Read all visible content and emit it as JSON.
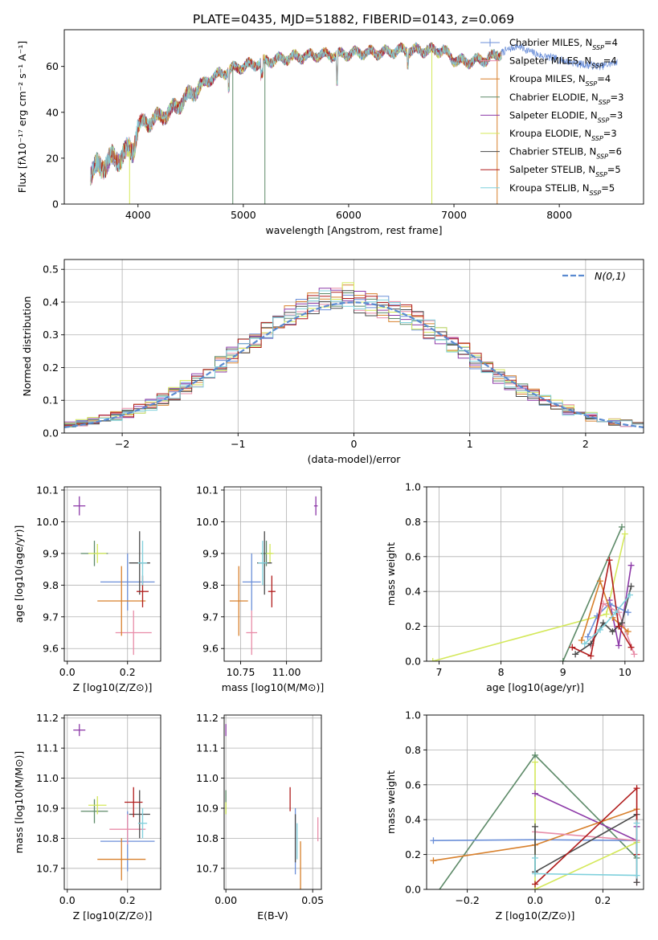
{
  "figure_title": "PLATE=0435, MJD=51882, FIBERID=0143, z=0.069",
  "colors": {
    "Chabrier MILES": "#6b8fd8",
    "Salpeter MILES": "#e88ca8",
    "Kroupa MILES": "#d8802c",
    "Chabrier ELODIE": "#5d8a68",
    "Salpeter ELODIE": "#8d3aa8",
    "Kroupa ELODIE": "#d4e85a",
    "Chabrier STELIB": "#4a4a4a",
    "Salpeter STELIB": "#b01c1c",
    "Kroupa STELIB": "#7fd0dc",
    "gaussian": "#5a8ad0",
    "grid": "#b0b0b0"
  },
  "legend_names": [
    "Chabrier MILES",
    "Salpeter MILES",
    "Kroupa MILES",
    "Chabrier ELODIE",
    "Salpeter ELODIE",
    "Kroupa ELODIE",
    "Chabrier STELIB",
    "Salpeter STELIB",
    "Kroupa STELIB"
  ],
  "legend_nssp": [
    "4",
    "4",
    "4",
    "3",
    "3",
    "3",
    "6",
    "5",
    "5"
  ],
  "legend_sub": "SSP",
  "legend_prefix": "N",
  "legend_eq": "=",
  "chart_data": [
    {
      "id": "spectrum",
      "type": "line",
      "title": "PLATE=0435, MJD=51882, FIBERID=0143, z=0.069",
      "xlabel": "wavelength [Angstrom, rest frame]",
      "ylabel": "Flux [fλ10⁻¹⁷ erg cm⁻² s⁻¹ A⁻¹]",
      "xlim": [
        3300,
        8800
      ],
      "ylim": [
        0,
        76
      ],
      "xticks": [
        4000,
        5000,
        6000,
        7000,
        8000
      ],
      "yticks": [
        0,
        20,
        40,
        60
      ],
      "grid": false,
      "legend": "top-right",
      "envelope": {
        "wavelength": [
          3550,
          3700,
          3850,
          3950,
          4000,
          4100,
          4300,
          4500,
          4700,
          4900,
          5100,
          5300,
          5500,
          5700,
          5900,
          6100,
          6300,
          6500,
          6700,
          6900,
          7000,
          7100,
          7300,
          7450
        ],
        "flux": [
          14,
          18,
          21,
          24,
          34,
          36,
          40,
          48,
          55,
          59,
          61,
          63,
          64,
          65,
          65,
          66,
          66,
          67,
          67,
          67,
          63,
          62,
          63,
          66
        ]
      },
      "extended_series": {
        "name": "Chabrier MILES",
        "wavelength": [
          7450,
          7600,
          7800,
          8000,
          8200,
          8400,
          8550
        ],
        "flux": [
          66,
          69,
          65,
          63,
          61,
          60,
          62
        ]
      },
      "drops": [
        {
          "name": "Kroupa ELODIE",
          "wavelength": 3920
        },
        {
          "name": "Chabrier ELODIE",
          "wavelength": 4900
        },
        {
          "name": "Chabrier ELODIE",
          "wavelength": 5205
        },
        {
          "name": "Kroupa ELODIE",
          "wavelength": 6790
        },
        {
          "name": "Kroupa MILES",
          "wavelength": 7410
        }
      ]
    },
    {
      "id": "residuals",
      "type": "line",
      "xlabel": "(data-model)/error",
      "ylabel": "Normed distribution",
      "xlim": [
        -2.5,
        2.5
      ],
      "ylim": [
        0,
        0.53
      ],
      "xticks": [
        -2,
        -1,
        0,
        1,
        2
      ],
      "yticks": [
        0.0,
        0.1,
        0.2,
        0.3,
        0.4,
        0.5
      ],
      "grid": true,
      "legend": "top-right",
      "gaussian_label": "N(0,1)",
      "bin_width": 0.1
    },
    {
      "id": "age_vs_Z",
      "type": "scatter",
      "xlabel": "Z [log10(Z/Z⊙)]",
      "ylabel": "age  [log10(age/yr)]",
      "xlim": [
        -0.01,
        0.31
      ],
      "ylim": [
        9.56,
        10.11
      ],
      "xticks": [
        0.0,
        0.2
      ],
      "yticks": [
        9.6,
        9.7,
        9.8,
        9.9,
        10.0,
        10.1
      ],
      "points": [
        {
          "name": "Chabrier MILES",
          "x": 0.2,
          "y": 9.81,
          "xerr": 0.09,
          "yerr": 0.09
        },
        {
          "name": "Salpeter MILES",
          "x": 0.22,
          "y": 9.65,
          "xerr": 0.06,
          "yerr": 0.07
        },
        {
          "name": "Kroupa MILES",
          "x": 0.18,
          "y": 9.75,
          "xerr": 0.08,
          "yerr": 0.11
        },
        {
          "name": "Chabrier ELODIE",
          "x": 0.09,
          "y": 9.9,
          "xerr": 0.045,
          "yerr": 0.04
        },
        {
          "name": "Salpeter ELODIE",
          "x": 0.04,
          "y": 10.05,
          "xerr": 0.02,
          "yerr": 0.03
        },
        {
          "name": "Kroupa ELODIE",
          "x": 0.1,
          "y": 9.9,
          "xerr": 0.03,
          "yerr": 0.03
        },
        {
          "name": "Chabrier STELIB",
          "x": 0.24,
          "y": 9.87,
          "xerr": 0.035,
          "yerr": 0.1
        },
        {
          "name": "Salpeter STELIB",
          "x": 0.25,
          "y": 9.78,
          "xerr": 0.02,
          "yerr": 0.05
        },
        {
          "name": "Kroupa STELIB",
          "x": 0.25,
          "y": 9.87,
          "xerr": 0.015,
          "yerr": 0.07
        }
      ]
    },
    {
      "id": "age_vs_mass",
      "type": "scatter",
      "xlabel": "mass [log10(M/M⊙)]",
      "ylabel": "",
      "xlim": [
        10.66,
        11.19
      ],
      "ylim": [
        9.56,
        10.11
      ],
      "xticks": [
        10.75,
        11.0
      ],
      "yticks": [
        9.6,
        9.7,
        9.8,
        9.9,
        10.0,
        10.1
      ],
      "points": [
        {
          "name": "Chabrier MILES",
          "x": 10.81,
          "y": 9.81,
          "xerr": 0.05,
          "yerr": 0.09
        },
        {
          "name": "Salpeter MILES",
          "x": 10.81,
          "y": 9.65,
          "xerr": 0.03,
          "yerr": 0.07
        },
        {
          "name": "Kroupa MILES",
          "x": 10.74,
          "y": 9.75,
          "xerr": 0.05,
          "yerr": 0.11
        },
        {
          "name": "Chabrier ELODIE",
          "x": 10.89,
          "y": 9.9,
          "xerr": 0.03,
          "yerr": 0.04
        },
        {
          "name": "Salpeter ELODIE",
          "x": 11.16,
          "y": 10.05,
          "xerr": 0.01,
          "yerr": 0.03
        },
        {
          "name": "Kroupa ELODIE",
          "x": 10.91,
          "y": 9.9,
          "xerr": 0.02,
          "yerr": 0.03
        },
        {
          "name": "Chabrier STELIB",
          "x": 10.88,
          "y": 9.87,
          "xerr": 0.04,
          "yerr": 0.1
        },
        {
          "name": "Salpeter STELIB",
          "x": 10.92,
          "y": 9.78,
          "xerr": 0.02,
          "yerr": 0.05
        },
        {
          "name": "Kroupa STELIB",
          "x": 10.87,
          "y": 9.87,
          "xerr": 0.025,
          "yerr": 0.07
        }
      ]
    },
    {
      "id": "weight_vs_age",
      "type": "line",
      "xlabel": "age  [log10(age/yr)]",
      "ylabel": "mass weight",
      "xlim": [
        6.8,
        10.3
      ],
      "ylim": [
        0,
        1.0
      ],
      "xticks": [
        7,
        8,
        9,
        10
      ],
      "yticks": [
        0.0,
        0.2,
        0.4,
        0.6,
        0.8,
        1.0
      ],
      "grid": true,
      "series": [
        {
          "name": "Kroupa ELODIE",
          "x": [
            6.9,
            9.7,
            10.0
          ],
          "y": [
            0.0,
            0.27,
            0.73
          ]
        },
        {
          "name": "Chabrier ELODIE",
          "x": [
            9.0,
            9.95
          ],
          "y": [
            0.0,
            0.77
          ]
        },
        {
          "name": "Salpeter ELODIE",
          "x": [
            9.75,
            9.9,
            10.1
          ],
          "y": [
            0.35,
            0.09,
            0.55
          ]
        },
        {
          "name": "Chabrier MILES",
          "x": [
            9.4,
            9.55,
            9.75,
            10.05
          ],
          "y": [
            0.14,
            0.26,
            0.33,
            0.28
          ]
        },
        {
          "name": "Salpeter MILES",
          "x": [
            9.45,
            9.65,
            9.9,
            10.15
          ],
          "y": [
            0.09,
            0.33,
            0.28,
            0.04
          ]
        },
        {
          "name": "Kroupa MILES",
          "x": [
            9.3,
            9.6,
            9.8,
            10.05
          ],
          "y": [
            0.12,
            0.46,
            0.25,
            0.17
          ]
        },
        {
          "name": "Chabrier STELIB",
          "x": [
            9.2,
            9.45,
            9.65,
            9.8,
            9.95,
            10.1
          ],
          "y": [
            0.04,
            0.1,
            0.22,
            0.17,
            0.22,
            0.43
          ]
        },
        {
          "name": "Salpeter STELIB",
          "x": [
            9.15,
            9.45,
            9.75,
            9.9,
            10.1
          ],
          "y": [
            0.08,
            0.03,
            0.58,
            0.2,
            0.08
          ]
        },
        {
          "name": "Kroupa STELIB",
          "x": [
            9.35,
            9.6,
            9.85,
            10.08
          ],
          "y": [
            0.1,
            0.18,
            0.28,
            0.38
          ]
        }
      ]
    },
    {
      "id": "mass_vs_Z",
      "type": "scatter",
      "xlabel": "Z [log10(Z/Z⊙)]",
      "ylabel": "mass [log10(M/M⊙)]",
      "xlim": [
        -0.01,
        0.31
      ],
      "ylim": [
        10.63,
        11.21
      ],
      "xticks": [
        0.0,
        0.2
      ],
      "yticks": [
        10.7,
        10.8,
        10.9,
        11.0,
        11.1,
        11.2
      ],
      "points": [
        {
          "name": "Chabrier MILES",
          "x": 0.2,
          "y": 10.79,
          "xerr": 0.09,
          "yerr": 0.1
        },
        {
          "name": "Salpeter MILES",
          "x": 0.2,
          "y": 10.83,
          "xerr": 0.06,
          "yerr": 0.05
        },
        {
          "name": "Kroupa MILES",
          "x": 0.18,
          "y": 10.73,
          "xerr": 0.08,
          "yerr": 0.07
        },
        {
          "name": "Chabrier ELODIE",
          "x": 0.09,
          "y": 10.89,
          "xerr": 0.045,
          "yerr": 0.04
        },
        {
          "name": "Salpeter ELODIE",
          "x": 0.04,
          "y": 11.16,
          "xerr": 0.02,
          "yerr": 0.02
        },
        {
          "name": "Kroupa ELODIE",
          "x": 0.1,
          "y": 10.91,
          "xerr": 0.03,
          "yerr": 0.03
        },
        {
          "name": "Chabrier STELIB",
          "x": 0.24,
          "y": 10.88,
          "xerr": 0.035,
          "yerr": 0.08
        },
        {
          "name": "Salpeter STELIB",
          "x": 0.22,
          "y": 10.92,
          "xerr": 0.03,
          "yerr": 0.05
        },
        {
          "name": "Kroupa STELIB",
          "x": 0.25,
          "y": 10.85,
          "xerr": 0.015,
          "yerr": 0.05
        }
      ]
    },
    {
      "id": "mass_vs_ebv",
      "type": "scatter",
      "xlabel": "E(B-V)",
      "ylabel": "",
      "xlim": [
        -0.001,
        0.055
      ],
      "ylim": [
        10.63,
        11.21
      ],
      "xticks": [
        0.0,
        0.05
      ],
      "yticks": [
        10.7,
        10.8,
        10.9,
        11.0,
        11.1,
        11.2
      ],
      "points": [
        {
          "name": "Chabrier MILES",
          "x": 0.04,
          "y": 10.79,
          "xerr": 0,
          "yerr": 0.11
        },
        {
          "name": "Salpeter MILES",
          "x": 0.053,
          "y": 10.83,
          "xerr": 0,
          "yerr": 0.04
        },
        {
          "name": "Kroupa MILES",
          "x": 0.043,
          "y": 10.71,
          "xerr": 0,
          "yerr": 0.08
        },
        {
          "name": "Chabrier ELODIE",
          "x": 0.0,
          "y": 10.92,
          "xerr": 0,
          "yerr": 0.04
        },
        {
          "name": "Salpeter ELODIE",
          "x": 0.0,
          "y": 11.16,
          "xerr": 0,
          "yerr": 0.02
        },
        {
          "name": "Kroupa ELODIE",
          "x": 0.0,
          "y": 10.9,
          "xerr": 0,
          "yerr": 0.02
        },
        {
          "name": "Chabrier STELIB",
          "x": 0.04,
          "y": 10.8,
          "xerr": 0,
          "yerr": 0.08
        },
        {
          "name": "Salpeter STELIB",
          "x": 0.037,
          "y": 10.93,
          "xerr": 0,
          "yerr": 0.04
        },
        {
          "name": "Kroupa STELIB",
          "x": 0.041,
          "y": 10.79,
          "xerr": 0,
          "yerr": 0.06
        }
      ]
    },
    {
      "id": "weight_vs_Z",
      "type": "line",
      "xlabel": "Z [log10(Z/Z⊙)]",
      "ylabel": "mass weight",
      "xlim": [
        -0.32,
        0.32
      ],
      "ylim": [
        0,
        1.0
      ],
      "xticks": [
        -0.2,
        0.0,
        0.2
      ],
      "yticks": [
        0.0,
        0.2,
        0.4,
        0.6,
        0.8,
        1.0
      ],
      "grid": true,
      "series": [
        {
          "name": "Chabrier ELODIE",
          "x": [
            -0.3,
            0.0,
            0.3
          ],
          "y": [
            -0.05,
            0.77,
            0.18
          ]
        },
        {
          "name": "Kroupa ELODIE",
          "x": [
            0.0,
            0.0,
            0.3
          ],
          "y": [
            0.73,
            0.0,
            0.27
          ]
        },
        {
          "name": "Salpeter ELODIE",
          "x": [
            0.0,
            0.3,
            0.3
          ],
          "y": [
            0.55,
            0.28,
            0.36
          ]
        },
        {
          "name": "Chabrier MILES",
          "x": [
            -0.3,
            0.0,
            0.3
          ],
          "y": [
            0.28,
            0.285,
            0.28
          ]
        },
        {
          "name": "Kroupa MILES",
          "x": [
            -0.3,
            0.0,
            0.3
          ],
          "y": [
            0.165,
            0.255,
            0.46
          ]
        },
        {
          "name": "Salpeter MILES",
          "x": [
            0.0,
            0.3,
            0.3
          ],
          "y": [
            0.33,
            0.28,
            0.04
          ]
        },
        {
          "name": "Chabrier STELIB",
          "x": [
            0.0,
            0.0,
            0.3,
            0.3
          ],
          "y": [
            0.36,
            0.1,
            0.43,
            0.04
          ]
        },
        {
          "name": "Salpeter STELIB",
          "x": [
            0.0,
            0.3,
            0.3
          ],
          "y": [
            0.03,
            0.58,
            0.2
          ]
        },
        {
          "name": "Kroupa STELIB",
          "x": [
            0.0,
            0.0,
            0.3,
            0.3
          ],
          "y": [
            0.18,
            0.09,
            0.08,
            0.38
          ]
        }
      ]
    }
  ]
}
